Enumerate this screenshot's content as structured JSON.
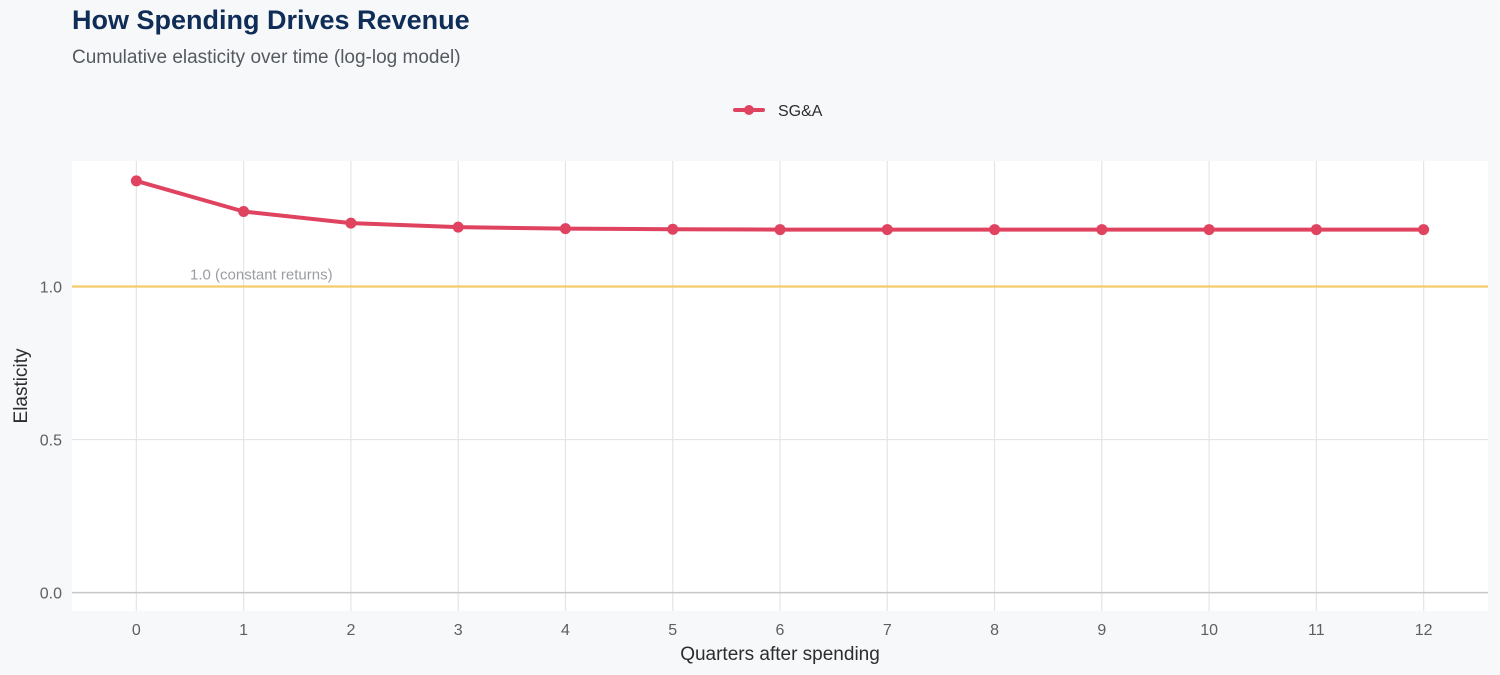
{
  "chart_data": {
    "type": "line",
    "title": "How Spending Drives Revenue",
    "subtitle": "Cumulative elasticity over time (log-log model)",
    "xlabel": "Quarters after spending",
    "ylabel": "Elasticity",
    "x": [
      0,
      1,
      2,
      3,
      4,
      5,
      6,
      7,
      8,
      9,
      10,
      11,
      12
    ],
    "x_tick_labels": [
      "0",
      "1",
      "2",
      "3",
      "4",
      "5",
      "6",
      "7",
      "8",
      "9",
      "10",
      "11",
      "12"
    ],
    "y_tick_values": [
      0.0,
      0.5,
      1.0
    ],
    "y_tick_labels": [
      "0.0",
      "0.5",
      "1.0"
    ],
    "xlim": [
      -0.6,
      12.6
    ],
    "ylim": [
      -0.06,
      1.41
    ],
    "grid": true,
    "legend_position": "top-center",
    "series": [
      {
        "name": "SG&A",
        "color": "#e0435f",
        "values": [
          1.345,
          1.245,
          1.207,
          1.194,
          1.189,
          1.187,
          1.186,
          1.186,
          1.186,
          1.186,
          1.186,
          1.186,
          1.186
        ]
      }
    ],
    "reference_line": {
      "value": 1.0,
      "label": "1.0 (constant returns)",
      "label_x": 0.5,
      "color": "#f5cb6a"
    }
  }
}
